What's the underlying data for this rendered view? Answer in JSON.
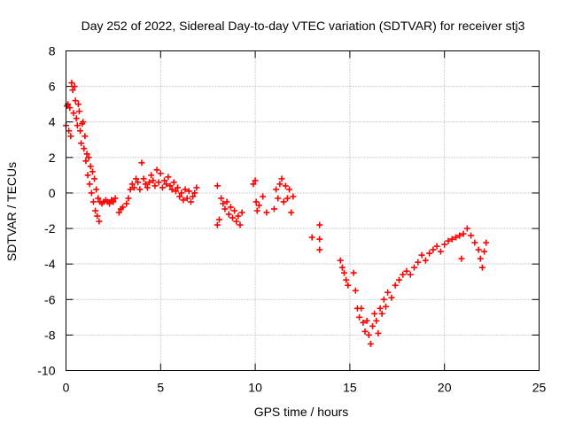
{
  "chart_data": {
    "type": "scatter",
    "title": "Day 252 of 2022, Sidereal Day-to-day VTEC variation (SDTVAR) for receiver stj3",
    "xlabel": "GPS time / hours",
    "ylabel": "SDTVAR / TECUs",
    "xlim": [
      0,
      25
    ],
    "ylim": [
      -10,
      8
    ],
    "xticks": [
      0,
      5,
      10,
      15,
      20,
      25
    ],
    "yticks": [
      -10,
      -8,
      -6,
      -4,
      -2,
      0,
      2,
      4,
      6,
      8
    ],
    "xtick_labels": [
      "0",
      "5",
      "10",
      "15",
      "20",
      "25"
    ],
    "ytick_labels": [
      "-10",
      "-8",
      "-6",
      "-4",
      "-2",
      "0",
      "2",
      "4",
      "6",
      "8"
    ],
    "grid": true,
    "marker": "plus",
    "color": "#ff0000",
    "series": [
      {
        "name": "stj3",
        "points": [
          [
            0.0,
            3.8
          ],
          [
            0.05,
            4.9
          ],
          [
            0.1,
            5.0
          ],
          [
            0.15,
            3.5
          ],
          [
            0.2,
            4.8
          ],
          [
            0.25,
            3.2
          ],
          [
            0.3,
            6.2
          ],
          [
            0.35,
            5.8
          ],
          [
            0.4,
            4.5
          ],
          [
            0.45,
            6.0
          ],
          [
            0.5,
            5.2
          ],
          [
            0.55,
            4.2
          ],
          [
            0.6,
            3.8
          ],
          [
            0.65,
            5.0
          ],
          [
            0.7,
            4.6
          ],
          [
            0.75,
            3.5
          ],
          [
            0.8,
            2.8
          ],
          [
            0.85,
            3.9
          ],
          [
            0.9,
            4.0
          ],
          [
            0.95,
            2.5
          ],
          [
            1.0,
            3.2
          ],
          [
            1.05,
            1.8
          ],
          [
            1.1,
            2.2
          ],
          [
            1.15,
            1.0
          ],
          [
            1.2,
            2.0
          ],
          [
            1.25,
            0.5
          ],
          [
            1.3,
            1.5
          ],
          [
            1.35,
            0.0
          ],
          [
            1.4,
            1.2
          ],
          [
            1.45,
            -0.5
          ],
          [
            1.5,
            0.8
          ],
          [
            1.55,
            -1.0
          ],
          [
            1.6,
            0.2
          ],
          [
            1.65,
            -1.3
          ],
          [
            1.7,
            -0.3
          ],
          [
            1.75,
            -1.6
          ],
          [
            1.8,
            -0.5
          ],
          [
            1.9,
            -0.6
          ],
          [
            2.0,
            -0.5
          ],
          [
            2.1,
            -0.4
          ],
          [
            2.2,
            -0.5
          ],
          [
            2.3,
            -0.6
          ],
          [
            2.4,
            -0.4
          ],
          [
            2.5,
            -0.5
          ],
          [
            2.6,
            -0.3
          ],
          [
            2.8,
            -1.1
          ],
          [
            2.9,
            -0.9
          ],
          [
            3.0,
            -0.8
          ],
          [
            3.2,
            -0.6
          ],
          [
            3.3,
            -0.3
          ],
          [
            3.4,
            0.2
          ],
          [
            3.5,
            0.5
          ],
          [
            3.6,
            0.3
          ],
          [
            3.7,
            0.8
          ],
          [
            3.8,
            0.6
          ],
          [
            3.9,
            0.2
          ],
          [
            4.0,
            1.7
          ],
          [
            4.1,
            0.8
          ],
          [
            4.2,
            0.5
          ],
          [
            4.3,
            0.3
          ],
          [
            4.4,
            0.6
          ],
          [
            4.5,
            1.0
          ],
          [
            4.6,
            0.7
          ],
          [
            4.7,
            0.4
          ],
          [
            4.8,
            1.3
          ],
          [
            4.9,
            0.6
          ],
          [
            5.0,
            1.1
          ],
          [
            5.1,
            0.3
          ],
          [
            5.2,
            0.7
          ],
          [
            5.3,
            0.5
          ],
          [
            5.4,
            0.9
          ],
          [
            5.5,
            0.4
          ],
          [
            5.6,
            0.2
          ],
          [
            5.7,
            0.6
          ],
          [
            5.8,
            0.1
          ],
          [
            5.9,
            0.3
          ],
          [
            6.0,
            -0.2
          ],
          [
            6.1,
            0.0
          ],
          [
            6.2,
            -0.4
          ],
          [
            6.3,
            0.2
          ],
          [
            6.4,
            -0.3
          ],
          [
            6.5,
            0.1
          ],
          [
            6.6,
            -0.5
          ],
          [
            6.7,
            -0.2
          ],
          [
            6.8,
            0.0
          ],
          [
            6.9,
            0.3
          ],
          [
            8.0,
            0.4
          ],
          [
            8.0,
            -1.8
          ],
          [
            8.1,
            -1.5
          ],
          [
            8.2,
            -0.3
          ],
          [
            8.3,
            -0.6
          ],
          [
            8.4,
            -0.9
          ],
          [
            8.5,
            -0.5
          ],
          [
            8.6,
            -1.2
          ],
          [
            8.7,
            -0.8
          ],
          [
            8.8,
            -1.4
          ],
          [
            8.9,
            -1.0
          ],
          [
            9.0,
            -1.6
          ],
          [
            9.1,
            -1.3
          ],
          [
            9.2,
            -1.8
          ],
          [
            9.3,
            -1.1
          ],
          [
            9.9,
            0.5
          ],
          [
            10.0,
            0.7
          ],
          [
            10.05,
            -0.5
          ],
          [
            10.1,
            -1.0
          ],
          [
            10.2,
            -0.7
          ],
          [
            10.4,
            -0.2
          ],
          [
            10.6,
            -1.1
          ],
          [
            11.0,
            -0.9
          ],
          [
            11.1,
            0.2
          ],
          [
            11.2,
            -0.3
          ],
          [
            11.3,
            0.5
          ],
          [
            11.4,
            0.8
          ],
          [
            11.5,
            -0.5
          ],
          [
            11.6,
            0.4
          ],
          [
            11.7,
            -0.3
          ],
          [
            11.8,
            0.2
          ],
          [
            11.9,
            -1.1
          ],
          [
            12.0,
            -0.2
          ],
          [
            13.0,
            -2.5
          ],
          [
            13.4,
            -1.8
          ],
          [
            13.4,
            -2.6
          ],
          [
            13.4,
            -3.2
          ],
          [
            14.5,
            -3.8
          ],
          [
            14.6,
            -4.2
          ],
          [
            14.7,
            -4.5
          ],
          [
            14.8,
            -4.9
          ],
          [
            14.9,
            -5.2
          ],
          [
            15.2,
            -4.5
          ],
          [
            15.3,
            -5.5
          ],
          [
            15.4,
            -6.5
          ],
          [
            15.5,
            -7.0
          ],
          [
            15.6,
            -6.5
          ],
          [
            15.7,
            -7.3
          ],
          [
            15.8,
            -7.8
          ],
          [
            15.9,
            -7.2
          ],
          [
            16.0,
            -8.0
          ],
          [
            16.1,
            -8.5
          ],
          [
            16.2,
            -7.5
          ],
          [
            16.3,
            -6.8
          ],
          [
            16.4,
            -7.2
          ],
          [
            16.5,
            -7.9
          ],
          [
            16.6,
            -6.5
          ],
          [
            16.7,
            -6.8
          ],
          [
            16.8,
            -6.0
          ],
          [
            16.9,
            -6.4
          ],
          [
            17.0,
            -5.6
          ],
          [
            17.2,
            -5.9
          ],
          [
            17.4,
            -5.2
          ],
          [
            17.6,
            -4.9
          ],
          [
            17.8,
            -4.6
          ],
          [
            18.0,
            -4.4
          ],
          [
            18.2,
            -4.6
          ],
          [
            18.4,
            -4.2
          ],
          [
            18.6,
            -3.9
          ],
          [
            18.8,
            -3.5
          ],
          [
            19.0,
            -3.8
          ],
          [
            19.2,
            -3.4
          ],
          [
            19.4,
            -3.2
          ],
          [
            19.6,
            -3.0
          ],
          [
            19.8,
            -3.3
          ],
          [
            20.0,
            -2.9
          ],
          [
            20.2,
            -2.7
          ],
          [
            20.4,
            -2.6
          ],
          [
            20.6,
            -2.5
          ],
          [
            20.8,
            -2.4
          ],
          [
            20.9,
            -3.7
          ],
          [
            21.0,
            -2.3
          ],
          [
            21.2,
            -2.0
          ],
          [
            21.4,
            -2.4
          ],
          [
            21.6,
            -2.8
          ],
          [
            21.8,
            -3.2
          ],
          [
            21.9,
            -3.7
          ],
          [
            22.0,
            -4.2
          ],
          [
            22.1,
            -3.3
          ],
          [
            22.2,
            -2.8
          ]
        ]
      }
    ]
  }
}
